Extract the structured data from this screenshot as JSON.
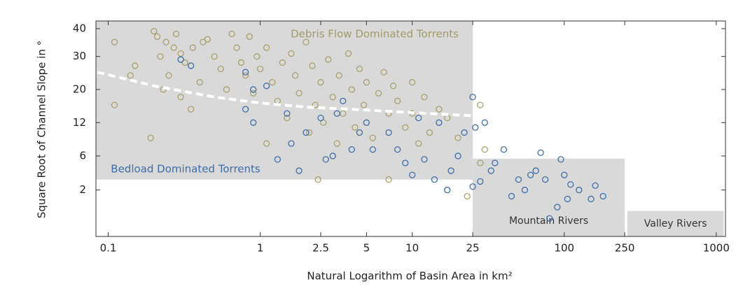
{
  "chart_data": {
    "type": "scatter",
    "xlabel": "Natural Logarithm of Basin Area in km²",
    "ylabel": "Square Root of Channel Slope in °",
    "xscale": "log",
    "yscale": "sqrt",
    "xlim": [
      0.083,
      1150
    ],
    "ylim": [
      0,
      43
    ],
    "xticks": [
      0.1,
      1,
      2.5,
      5,
      10,
      25,
      100,
      250,
      1000
    ],
    "yticks": [
      2,
      6,
      12,
      20,
      30,
      40
    ],
    "region_color": "#d9d9d9",
    "regions": [
      {
        "x": [
          0.083,
          25
        ],
        "y": [
          3,
          43
        ]
      },
      {
        "label": "Mountain Rivers",
        "x": [
          25,
          250
        ],
        "y": [
          0,
          5.6
        ]
      },
      {
        "label": "Valley Rivers",
        "x": [
          260,
          1120
        ],
        "y": [
          0,
          0.6
        ]
      }
    ],
    "annotations": [
      {
        "text": "Debris Flow Dominated Torrents",
        "color": "#a09a6a"
      },
      {
        "text": "Bedload Dominated Torrents",
        "color": "#3e6da8"
      }
    ],
    "trend": {
      "color": "#ffffff",
      "x": [
        0.085,
        0.2,
        0.5,
        1,
        2,
        5,
        10,
        25
      ],
      "values": [
        25,
        21,
        18,
        16.5,
        15.5,
        14.8,
        14.2,
        13.5
      ]
    },
    "series": [
      {
        "color": "#a89f6a",
        "x": [
          0.11,
          0.11,
          0.14,
          0.15,
          0.19,
          0.2,
          0.21,
          0.22,
          0.23,
          0.24,
          0.25,
          0.27,
          0.28,
          0.3,
          0.3,
          0.32,
          0.35,
          0.36,
          0.4,
          0.42,
          0.45,
          0.5,
          0.55,
          0.6,
          0.65,
          0.7,
          0.75,
          0.8,
          0.85,
          0.9,
          0.95,
          1.0,
          1.1,
          1.1,
          1.2,
          1.3,
          1.4,
          1.5,
          1.6,
          1.7,
          1.8,
          2.0,
          2.1,
          2.2,
          2.3,
          2.4,
          2.5,
          2.6,
          2.8,
          3.0,
          3.2,
          3.3,
          3.5,
          3.8,
          4.0,
          4.2,
          4.5,
          4.8,
          5.0,
          5.5,
          6.0,
          6.5,
          7.0,
          7.0,
          7.5,
          8.0,
          9.0,
          10,
          10,
          11,
          12,
          13,
          15,
          17,
          20,
          23,
          28,
          28,
          30
        ],
        "values": [
          35,
          16,
          24,
          27,
          9,
          39,
          37,
          30,
          20,
          35,
          24,
          33,
          38,
          18,
          31,
          28,
          15,
          33,
          22,
          35,
          36,
          30,
          26,
          20,
          38,
          33,
          28,
          24,
          37,
          19,
          30,
          26,
          8,
          33,
          22,
          17,
          28,
          13,
          31,
          24,
          19,
          35,
          10,
          27,
          16,
          3,
          22,
          12,
          29,
          18,
          8,
          24,
          14,
          31,
          20,
          11,
          26,
          16,
          22,
          9,
          19,
          25,
          3,
          14,
          21,
          17,
          11,
          22,
          14,
          8,
          18,
          10,
          15,
          13,
          9,
          1.5,
          16,
          5,
          7
        ]
      },
      {
        "color": "#3e6da8",
        "x": [
          0.3,
          0.35,
          0.8,
          0.8,
          0.9,
          0.9,
          1.1,
          1.3,
          1.5,
          1.6,
          1.8,
          2.0,
          2.5,
          2.7,
          3.0,
          3.2,
          3.5,
          4.0,
          4.5,
          5.0,
          5.5,
          7.0,
          8.0,
          9.0,
          10,
          11,
          12,
          14,
          15,
          17,
          18,
          20,
          22,
          25,
          25,
          26,
          28,
          30,
          33,
          35,
          40,
          45,
          50,
          55,
          60,
          65,
          70,
          75,
          80,
          90,
          95,
          100,
          105,
          110,
          125,
          150,
          160,
          180
        ],
        "values": [
          29,
          27,
          25,
          15,
          12,
          20,
          21,
          5.5,
          14,
          8,
          4,
          10,
          13,
          5.5,
          6,
          14,
          17,
          7,
          10,
          12,
          7,
          10,
          7,
          5,
          3.5,
          13,
          5.5,
          3,
          12,
          2,
          4,
          6,
          10,
          18,
          2.3,
          11,
          2.8,
          12,
          4,
          5,
          7,
          1.5,
          3,
          2,
          3.5,
          4,
          6.5,
          3,
          0.3,
          0.8,
          5.5,
          3.5,
          1.3,
          2.5,
          2,
          1.3,
          2.4,
          1.5
        ]
      }
    ]
  }
}
